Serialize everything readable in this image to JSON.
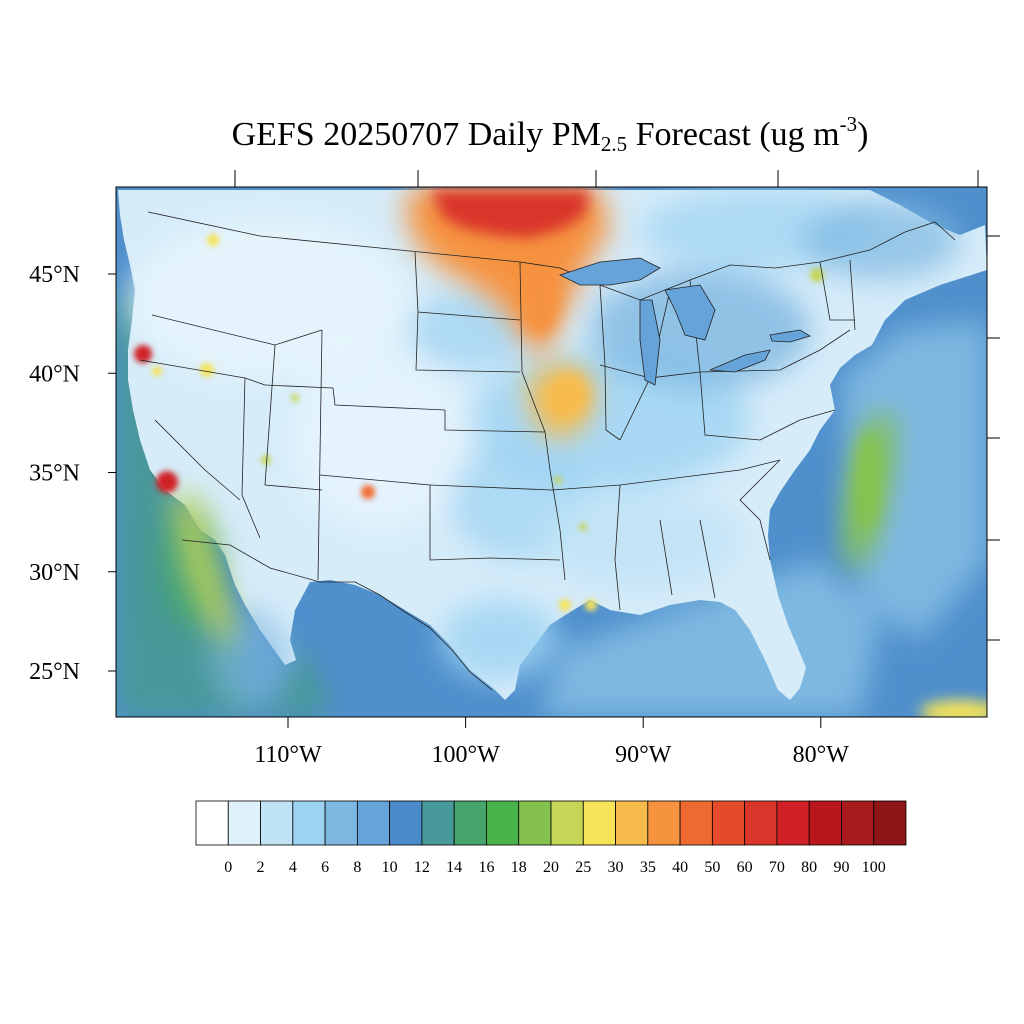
{
  "title": {
    "prefix": "GEFS 20250707 Daily PM",
    "subscript": "2.5",
    "middle": " Forecast (ug m",
    "superscript": "-3",
    "suffix": ")"
  },
  "map": {
    "lon_range": [
      -119.5,
      -71.0
    ],
    "lat_range": [
      22.5,
      49.3
    ],
    "lat_ticks": [
      {
        "value": 45,
        "label": "45°N"
      },
      {
        "value": 40,
        "label": "40°N"
      },
      {
        "value": 35,
        "label": "35°N"
      },
      {
        "value": 30,
        "label": "30°N"
      },
      {
        "value": 25,
        "label": "25°N"
      }
    ],
    "lon_ticks": [
      {
        "value": -110,
        "label": "110°W"
      },
      {
        "value": -100,
        "label": "100°W"
      },
      {
        "value": -90,
        "label": "90°W"
      },
      {
        "value": -80,
        "label": "80°W"
      }
    ],
    "ocean_color": "#4f8fcc",
    "land_color": "#d6ecf9"
  },
  "colorbar": {
    "labels": [
      "0",
      "2",
      "4",
      "6",
      "8",
      "10",
      "12",
      "14",
      "16",
      "18",
      "20",
      "25",
      "30",
      "35",
      "40",
      "50",
      "60",
      "70",
      "80",
      "90",
      "100"
    ],
    "colors": [
      "#ffffff",
      "#dff1fb",
      "#c0e3f6",
      "#9dd3f2",
      "#7eb8e1",
      "#65a3d8",
      "#4a8ac8",
      "#48999a",
      "#45a56c",
      "#4ab24a",
      "#85c24d",
      "#c5d656",
      "#f6e359",
      "#f7bb4c",
      "#f6933f",
      "#ef6a30",
      "#e54b2b",
      "#d9352a",
      "#cf2026",
      "#b9171d",
      "#a81a1c",
      "#8e1618"
    ]
  },
  "plumes": [
    {
      "name": "canada-midwest-smoke",
      "color": "#f6933f"
    },
    {
      "name": "canada-core-smoke",
      "color": "#d9352a"
    },
    {
      "name": "iowa-missouri-smoke",
      "color": "#f7bb4c"
    },
    {
      "name": "atlantic-offshore-plume",
      "color": "#85c24d"
    },
    {
      "name": "n-california-fire",
      "color": "#cf2026"
    },
    {
      "name": "s-california-fire",
      "color": "#cf2026"
    },
    {
      "name": "new-mexico-fire",
      "color": "#ef6a30"
    },
    {
      "name": "idaho-fire",
      "color": "#f6e359"
    },
    {
      "name": "nevada-fire",
      "color": "#f6e359"
    },
    {
      "name": "louisiana-fire",
      "color": "#f6e359"
    },
    {
      "name": "quebec-fire",
      "color": "#c5d656"
    },
    {
      "name": "bahamas-plume",
      "color": "#f6e359"
    }
  ]
}
